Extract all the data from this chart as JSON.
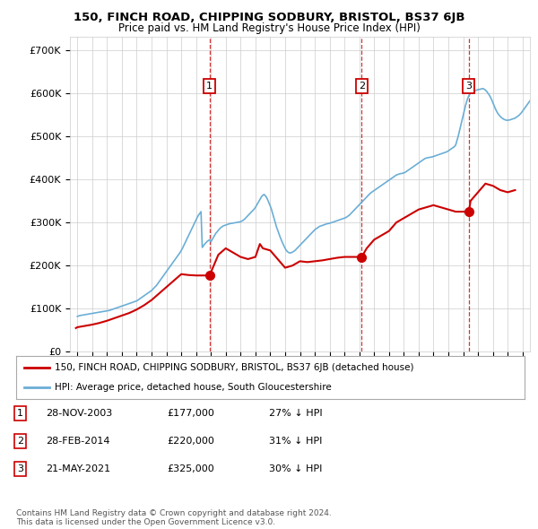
{
  "title": "150, FINCH ROAD, CHIPPING SODBURY, BRISTOL, BS37 6JB",
  "subtitle": "Price paid vs. HM Land Registry's House Price Index (HPI)",
  "background_color": "#ffffff",
  "grid_color": "#cccccc",
  "yticks": [
    0,
    100000,
    200000,
    300000,
    400000,
    500000,
    600000,
    700000
  ],
  "ylabels": [
    "£0",
    "£100K",
    "£200K",
    "£300K",
    "£400K",
    "£500K",
    "£600K",
    "£700K"
  ],
  "ylim": [
    0,
    730000
  ],
  "xlim_start": 1994.5,
  "xlim_end": 2025.5,
  "sale_dates": [
    2003.91,
    2014.16,
    2021.38
  ],
  "sale_prices": [
    177000,
    220000,
    325000
  ],
  "sale_labels": [
    "1",
    "2",
    "3"
  ],
  "hpi_color": "#6baed6",
  "price_color": "#cc0000",
  "legend_label_price": "150, FINCH ROAD, CHIPPING SODBURY, BRISTOL, BS37 6JB (detached house)",
  "legend_label_hpi": "HPI: Average price, detached house, South Gloucestershire",
  "table_rows": [
    [
      "1",
      "28-NOV-2003",
      "£177,000",
      "27% ↓ HPI"
    ],
    [
      "2",
      "28-FEB-2014",
      "£220,000",
      "31% ↓ HPI"
    ],
    [
      "3",
      "21-MAY-2021",
      "£325,000",
      "30% ↓ HPI"
    ]
  ],
  "footnote": "Contains HM Land Registry data © Crown copyright and database right 2024.\nThis data is licensed under the Open Government Licence v3.0.",
  "hpi_y": [
    82000,
    83000,
    84000,
    84500,
    85000,
    85500,
    86000,
    86500,
    87000,
    87500,
    88000,
    88500,
    89000,
    89500,
    90000,
    90500,
    91000,
    91500,
    92000,
    92500,
    93000,
    93500,
    94000,
    94500,
    95000,
    95500,
    96000,
    97000,
    98000,
    99000,
    100000,
    101000,
    102000,
    103000,
    104000,
    105000,
    106000,
    107000,
    108000,
    109000,
    110000,
    111000,
    112000,
    113000,
    114000,
    115000,
    116000,
    117000,
    118000,
    120000,
    122000,
    124000,
    126000,
    128000,
    130000,
    132000,
    134000,
    136000,
    138000,
    140000,
    142000,
    145000,
    148000,
    151000,
    154000,
    158000,
    162000,
    166000,
    170000,
    174000,
    178000,
    182000,
    186000,
    190000,
    194000,
    198000,
    202000,
    206000,
    210000,
    214000,
    218000,
    222000,
    226000,
    230000,
    235000,
    240000,
    246000,
    252000,
    258000,
    264000,
    270000,
    276000,
    282000,
    288000,
    294000,
    300000,
    306000,
    312000,
    317000,
    321000,
    325000,
    242000,
    246000,
    250000,
    253000,
    256000,
    258000,
    260000,
    255000,
    260000,
    265000,
    270000,
    275000,
    278000,
    282000,
    285000,
    288000,
    290000,
    292000,
    293000,
    294000,
    295000,
    296000,
    297000,
    297500,
    298000,
    298500,
    299000,
    299500,
    300000,
    300500,
    301000,
    302000,
    303000,
    305000,
    307000,
    310000,
    313000,
    316000,
    319000,
    322000,
    325000,
    328000,
    331000,
    335000,
    340000,
    345000,
    350000,
    355000,
    360000,
    363000,
    365000,
    362000,
    358000,
    352000,
    345000,
    338000,
    330000,
    320000,
    310000,
    300000,
    290000,
    282000,
    274000,
    266000,
    259000,
    252000,
    246000,
    240000,
    235000,
    232000,
    230000,
    229000,
    230000,
    231000,
    233000,
    235000,
    238000,
    241000,
    244000,
    247000,
    250000,
    253000,
    256000,
    259000,
    262000,
    265000,
    268000,
    271000,
    274000,
    277000,
    280000,
    283000,
    285000,
    287000,
    289000,
    291000,
    292000,
    293000,
    294000,
    295000,
    296000,
    297000,
    297500,
    298000,
    299000,
    300000,
    301000,
    302000,
    303000,
    304000,
    305000,
    306000,
    307000,
    308000,
    309000,
    310000,
    311000,
    313000,
    315000,
    317000,
    320000,
    323000,
    326000,
    329000,
    332000,
    335000,
    338000,
    341000,
    344000,
    347000,
    350000,
    353000,
    356000,
    359000,
    362000,
    365000,
    368000,
    370000,
    372000,
    374000,
    376000,
    378000,
    380000,
    382000,
    384000,
    386000,
    388000,
    390000,
    392000,
    394000,
    396000,
    398000,
    400000,
    402000,
    404000,
    406000,
    408000,
    410000,
    411000,
    412000,
    413000,
    413500,
    414000,
    415000,
    416000,
    418000,
    420000,
    422000,
    424000,
    426000,
    428000,
    430000,
    432000,
    434000,
    436000,
    438000,
    440000,
    442000,
    444000,
    446000,
    448000,
    449000,
    450000,
    450500,
    451000,
    451500,
    452000,
    453000,
    454000,
    455000,
    456000,
    457000,
    458000,
    459000,
    460000,
    461000,
    462000,
    463000,
    464000,
    466000,
    468000,
    470000,
    472000,
    474000,
    476000,
    480000,
    490000,
    500000,
    512000,
    524000,
    536000,
    548000,
    560000,
    572000,
    582000,
    590000,
    596000,
    600000,
    602000,
    604000,
    605000,
    606000,
    607000,
    608000,
    608500,
    609000,
    610000,
    610500,
    609000,
    607000,
    604000,
    600000,
    596000,
    591000,
    585000,
    578000,
    571000,
    564000,
    558000,
    553000,
    549000,
    546000,
    543000,
    541000,
    539000,
    538000,
    537000,
    537000,
    537500,
    538000,
    539000,
    540000,
    541000,
    542000,
    544000,
    546000,
    548000,
    551000,
    554000,
    558000,
    562000,
    566000,
    570000,
    574000,
    578000,
    582000,
    586000
  ],
  "price_x": [
    1994.9,
    1995.0,
    1995.5,
    1996.0,
    1996.5,
    1997.0,
    1997.5,
    1998.0,
    1998.5,
    1999.0,
    1999.5,
    2000.0,
    2000.5,
    2001.0,
    2001.5,
    2002.0,
    2002.5,
    2003.0,
    2003.91,
    2004.5,
    2005.0,
    2005.5,
    2006.0,
    2006.5,
    2007.0,
    2007.3,
    2007.5,
    2008.0,
    2008.5,
    2009.0,
    2009.5,
    2010.0,
    2010.5,
    2011.0,
    2011.5,
    2012.0,
    2012.5,
    2013.0,
    2013.5,
    2014.16,
    2014.5,
    2015.0,
    2015.5,
    2016.0,
    2016.5,
    2017.0,
    2017.5,
    2018.0,
    2018.5,
    2019.0,
    2019.5,
    2020.0,
    2020.5,
    2021.38,
    2021.5,
    2022.0,
    2022.5,
    2023.0,
    2023.5,
    2024.0,
    2024.5
  ],
  "price_y": [
    55000,
    57000,
    60000,
    63000,
    67000,
    72000,
    78000,
    84000,
    90000,
    98000,
    108000,
    120000,
    135000,
    150000,
    165000,
    180000,
    178000,
    177000,
    177000,
    225000,
    240000,
    230000,
    220000,
    215000,
    220000,
    250000,
    240000,
    235000,
    215000,
    195000,
    200000,
    210000,
    208000,
    210000,
    212000,
    215000,
    218000,
    220000,
    220000,
    220000,
    240000,
    260000,
    270000,
    280000,
    300000,
    310000,
    320000,
    330000,
    335000,
    340000,
    335000,
    330000,
    325000,
    325000,
    350000,
    370000,
    390000,
    385000,
    375000,
    370000,
    375000
  ]
}
